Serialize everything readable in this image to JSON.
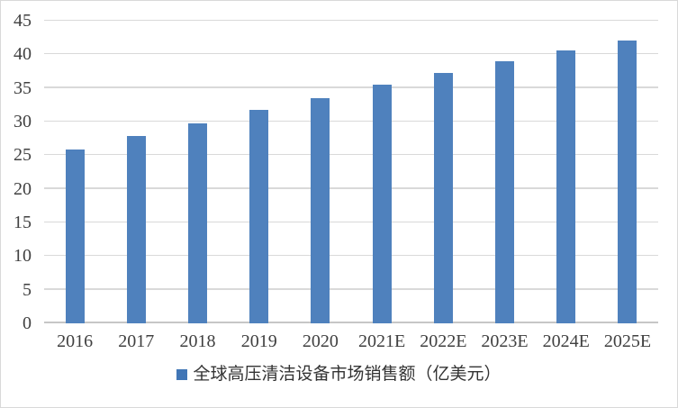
{
  "chart_data": {
    "type": "bar",
    "categories": [
      "2016",
      "2017",
      "2018",
      "2019",
      "2020",
      "2021E",
      "2022E",
      "2023E",
      "2024E",
      "2025E"
    ],
    "values": [
      25.8,
      27.9,
      29.8,
      31.7,
      33.5,
      35.5,
      37.3,
      39.0,
      40.6,
      42.0
    ],
    "title": "",
    "xlabel": "",
    "ylabel": "",
    "ylim": [
      0,
      45
    ],
    "ytick_step": 5,
    "yticks": [
      0,
      5,
      10,
      15,
      20,
      25,
      30,
      35,
      40,
      45
    ],
    "grid": true,
    "legend": {
      "label": "全球高压清洁设备市场销售额（亿美元）",
      "position": "bottom"
    },
    "colors": {
      "bar": "#4f81bd",
      "legend_swatch": "#4176b6",
      "gridline": "#d9d9d9",
      "axis_line": "#c6c6c6",
      "text": "#404040",
      "background": "#ffffff",
      "frame_border": "#d9d9d9"
    }
  }
}
